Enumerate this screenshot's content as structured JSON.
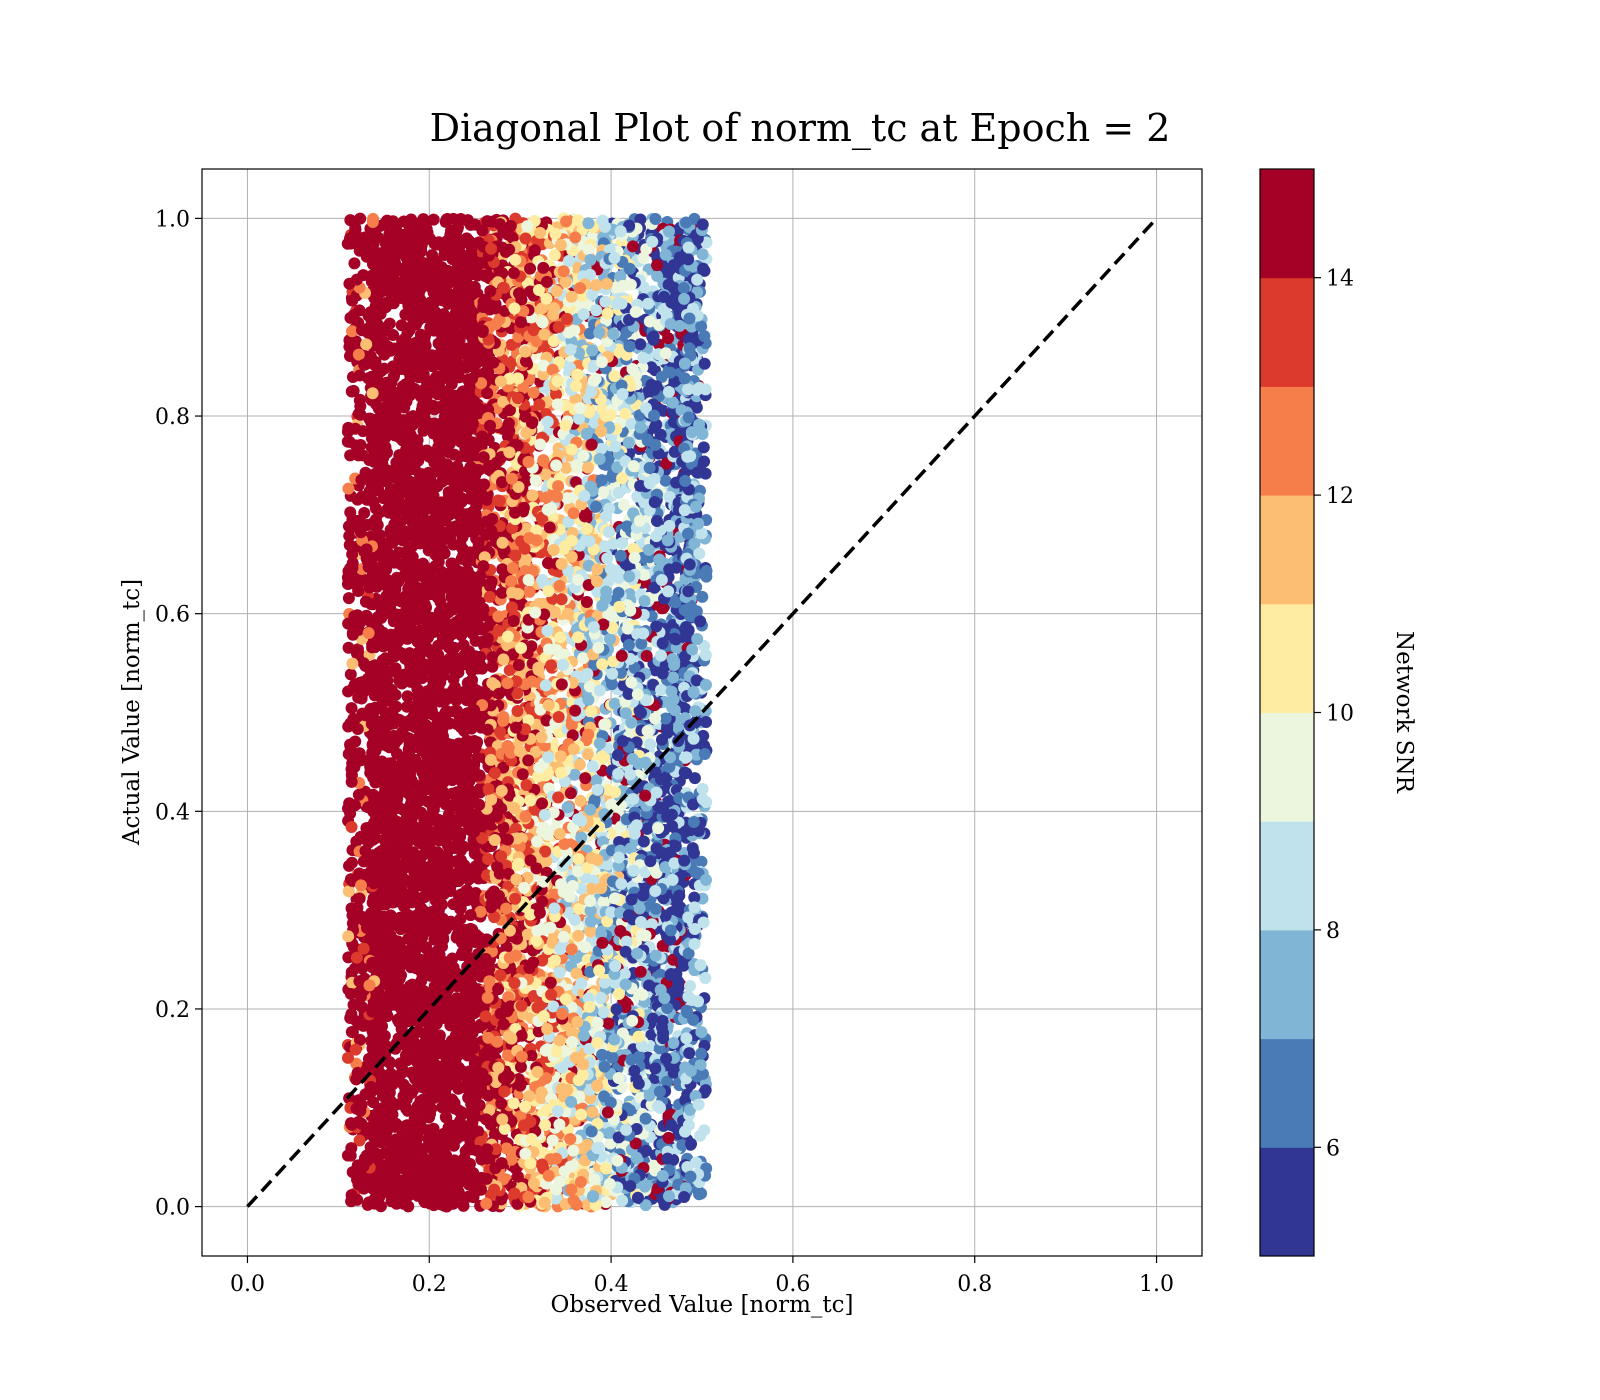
{
  "chart_data": {
    "type": "scatter",
    "title": "Diagonal Plot of norm_tc at Epoch = 2",
    "xlabel": "Observed Value [norm_tc]",
    "ylabel": "Actual Value [norm_tc]",
    "xlim": [
      -0.05,
      1.05
    ],
    "ylim": [
      -0.05,
      1.05
    ],
    "xticks": [
      "0.0",
      "0.2",
      "0.4",
      "0.6",
      "0.8",
      "1.0"
    ],
    "yticks": [
      "0.0",
      "0.2",
      "0.4",
      "0.6",
      "0.8",
      "1.0"
    ],
    "grid": true,
    "reference_line": {
      "x": [
        0.0,
        1.0
      ],
      "y": [
        0.0,
        1.0
      ],
      "style": "dashed",
      "color": "#000000"
    },
    "point_cloud": {
      "x_range": [
        0.11,
        0.505
      ],
      "y_range": [
        0.0,
        1.0
      ],
      "color_trend": "high SNR (dark red) at low observed values, decreasing to low SNR (blue) near 0.5"
    },
    "colorbar": {
      "label": "Network SNR",
      "range": [
        5,
        15
      ],
      "ticks": [
        "6",
        "8",
        "10",
        "12",
        "14"
      ],
      "bins": [
        {
          "from": 5,
          "to": 6,
          "color": "#313695"
        },
        {
          "from": 6,
          "to": 7,
          "color": "#4a7bb7"
        },
        {
          "from": 7,
          "to": 8,
          "color": "#80b5d6"
        },
        {
          "from": 8,
          "to": 9,
          "color": "#c0e2ec"
        },
        {
          "from": 9,
          "to": 10,
          "color": "#ecf6df"
        },
        {
          "from": 10,
          "to": 11,
          "color": "#feeca1"
        },
        {
          "from": 11,
          "to": 12,
          "color": "#fcbe72"
        },
        {
          "from": 12,
          "to": 13,
          "color": "#f57e4b"
        },
        {
          "from": 13,
          "to": 14,
          "color": "#dc3a2c"
        },
        {
          "from": 14,
          "to": 15,
          "color": "#a50026"
        }
      ]
    }
  }
}
